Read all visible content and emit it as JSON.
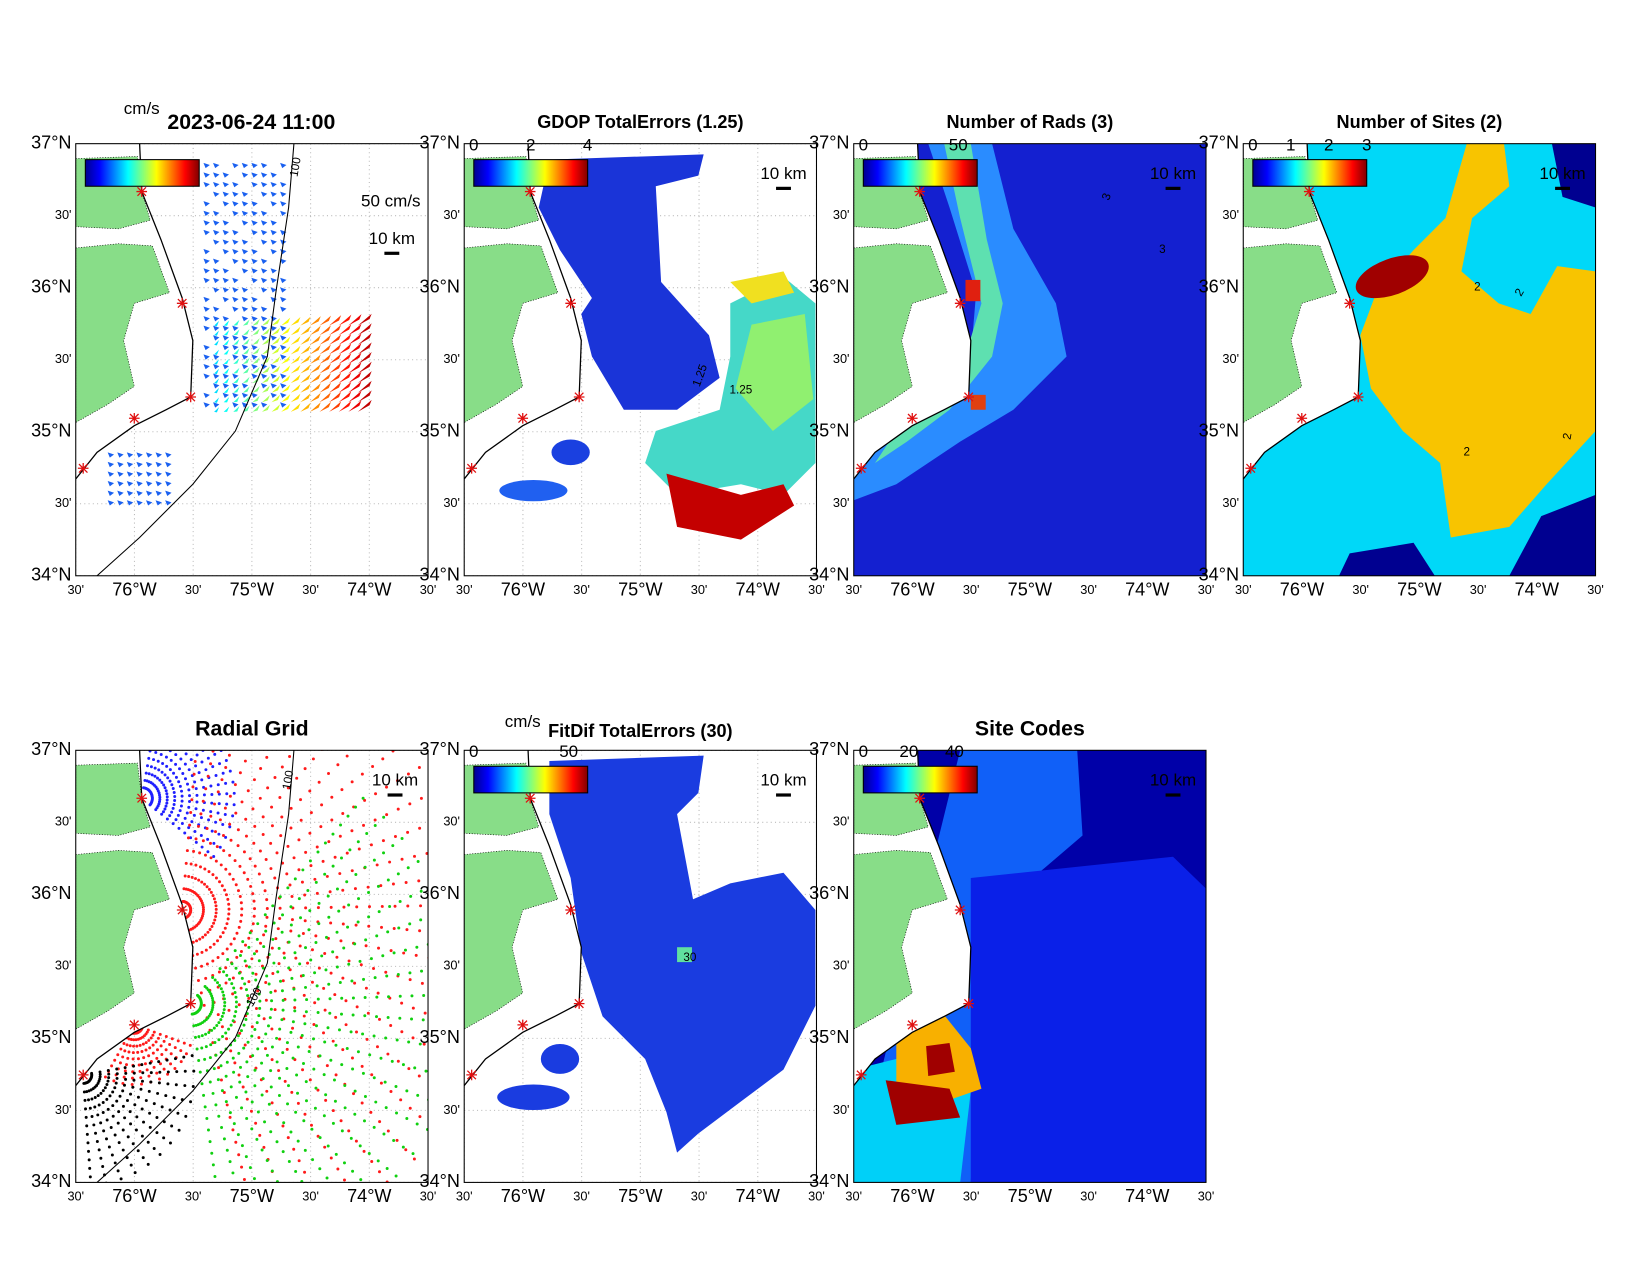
{
  "lat_ticks": [
    "37°N",
    "30'",
    "36°N",
    "30'",
    "35°N",
    "30'",
    "34°N"
  ],
  "lon_ticks": [
    "30'",
    "76°W",
    "30'",
    "75°W",
    "30'",
    "74°W",
    "30'"
  ],
  "scale_label": "10 km",
  "panels": [
    {
      "title": "2023-06-24 11:00",
      "colorbar_unit": "cm/s",
      "vector_scale": "50 cm/s",
      "contour_labels": [
        "100"
      ]
    },
    {
      "title": "GDOP TotalErrors (1.25)",
      "colorbar_lim": [
        0,
        4
      ],
      "colorbar_ticks": [
        0,
        2,
        4
      ],
      "contour_labels": [
        "1.25",
        "1.25"
      ]
    },
    {
      "title": "Number of Rads (3)",
      "colorbar_lim": [
        0,
        60
      ],
      "colorbar_ticks": [
        0,
        50
      ],
      "contour_labels": [
        "3",
        "3"
      ]
    },
    {
      "title": "Number of Sites (2)",
      "colorbar_lim": [
        0,
        3
      ],
      "colorbar_ticks": [
        0,
        1,
        2,
        3
      ],
      "contour_labels": [
        "2",
        "2",
        "2",
        "2"
      ]
    },
    {
      "title": "Radial Grid",
      "contour_labels": [
        "100",
        "100"
      ]
    },
    {
      "title": "FitDif TotalErrors (30)",
      "colorbar_unit": "cm/s",
      "colorbar_lim": [
        0,
        60
      ],
      "colorbar_ticks": [
        0,
        50
      ],
      "contour_labels": [
        "30"
      ]
    },
    {
      "title": "Site Codes",
      "colorbar_lim": [
        0,
        50
      ],
      "colorbar_ticks": [
        0,
        20,
        40
      ]
    }
  ]
}
